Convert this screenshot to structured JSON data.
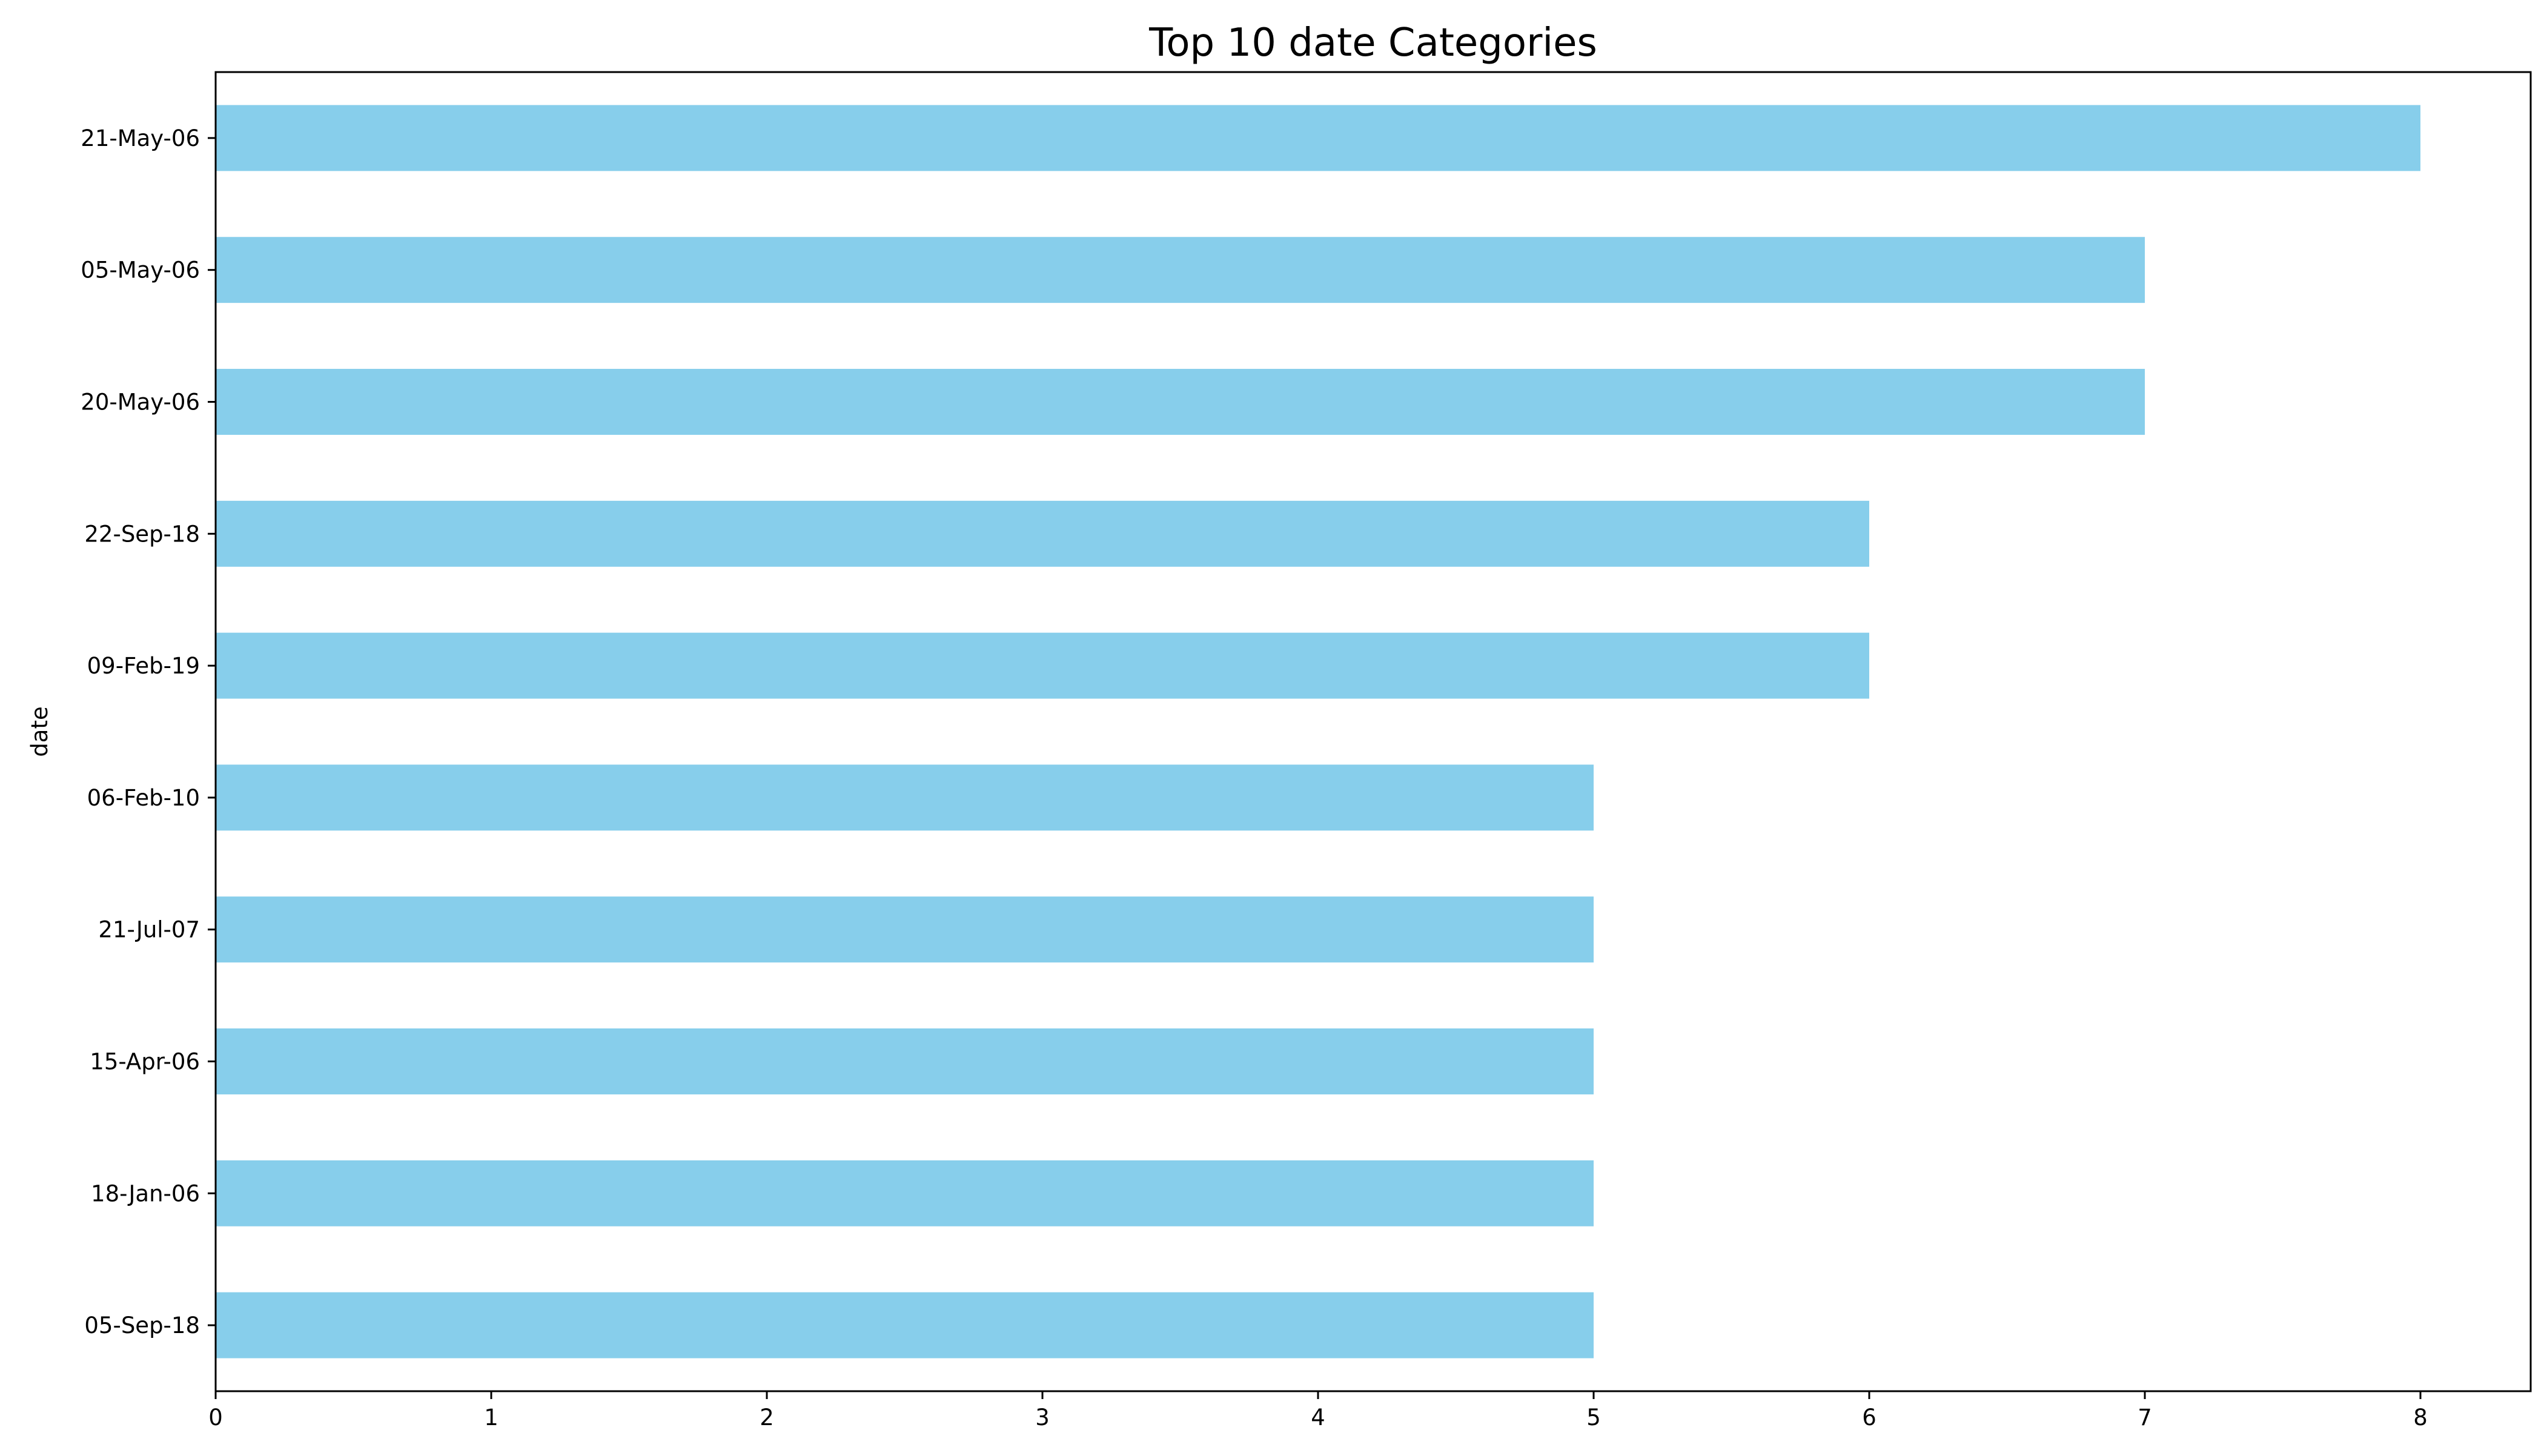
{
  "chart_data": {
    "type": "bar",
    "orientation": "horizontal",
    "title": "Top 10 date Categories",
    "xlabel": "",
    "ylabel": "date",
    "categories": [
      "21-May-06",
      "05-May-06",
      "20-May-06",
      "22-Sep-18",
      "09-Feb-19",
      "06-Feb-10",
      "21-Jul-07",
      "15-Apr-06",
      "18-Jan-06",
      "05-Sep-18"
    ],
    "values": [
      8,
      7,
      7,
      6,
      6,
      5,
      5,
      5,
      5,
      5
    ],
    "xlim": [
      0,
      8.4
    ],
    "xticks": [
      "0",
      "1",
      "2",
      "3",
      "4",
      "5",
      "6",
      "7",
      "8"
    ],
    "bar_color": "#87ceeb",
    "grid": false,
    "legend": "none"
  }
}
